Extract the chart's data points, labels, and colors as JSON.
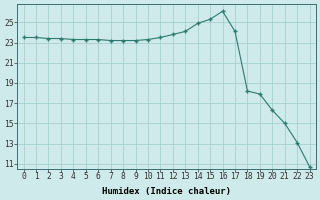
{
  "x": [
    0,
    1,
    2,
    3,
    4,
    5,
    6,
    7,
    8,
    9,
    10,
    11,
    12,
    13,
    14,
    15,
    16,
    17,
    18,
    19,
    20,
    21,
    22,
    23
  ],
  "y": [
    23.5,
    23.5,
    23.4,
    23.4,
    23.3,
    23.3,
    23.3,
    23.2,
    23.2,
    23.2,
    23.3,
    23.5,
    23.8,
    24.1,
    24.9,
    25.3,
    26.1,
    24.1,
    18.2,
    17.9,
    16.3,
    15.0,
    13.1,
    10.7
  ],
  "line_color": "#2d7a6e",
  "marker": "+",
  "marker_size": 3,
  "marker_lw": 1.0,
  "bg_color": "#ceeaea",
  "grid_color": "#a8cfcf",
  "xlabel": "Humidex (Indice chaleur)",
  "xlim": [
    -0.5,
    23.5
  ],
  "ylim": [
    10.5,
    26.8
  ],
  "yticks": [
    11,
    13,
    15,
    17,
    19,
    21,
    23,
    25
  ],
  "xticks": [
    0,
    1,
    2,
    3,
    4,
    5,
    6,
    7,
    8,
    9,
    10,
    11,
    12,
    13,
    14,
    15,
    16,
    17,
    18,
    19,
    20,
    21,
    22,
    23
  ],
  "label_fontsize": 6.5,
  "tick_fontsize": 5.8
}
